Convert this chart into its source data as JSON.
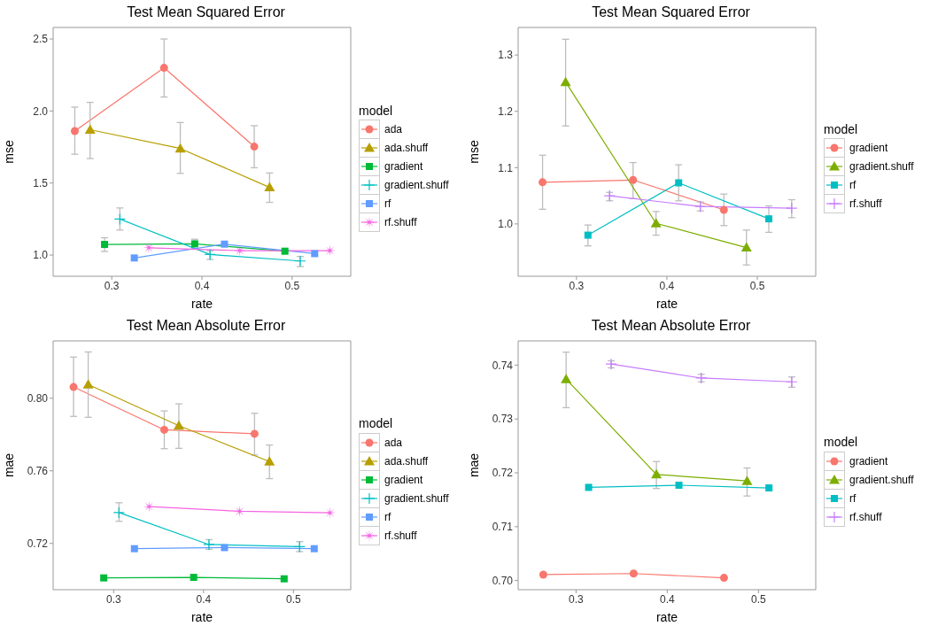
{
  "chart_data": [
    {
      "type": "line",
      "title": "Test Mean Squared Error",
      "xlabel": "rate",
      "ylabel": "mse",
      "legend_title": "model",
      "legend": "right",
      "xlim": [
        0.235,
        0.565
      ],
      "xticks": [
        0.3,
        0.4,
        0.5
      ],
      "ylim": [
        0.853,
        2.58
      ],
      "yticks": [
        {
          "value": 1,
          "label": "1.0"
        },
        1.5,
        {
          "value": 2,
          "label": "2.0"
        },
        2.5
      ],
      "series": [
        {
          "name": "ada",
          "color": "#f8766d",
          "marker": "circle",
          "x": [
            0.259,
            0.358,
            0.458
          ],
          "values": [
            1.861,
            2.3,
            1.753
          ],
          "errors": [
            [
              1.7,
              2.027
            ],
            [
              2.097,
              2.5
            ],
            [
              1.606,
              1.898
            ]
          ]
        },
        {
          "name": "ada.shuff",
          "color": "#b79f00",
          "marker": "triangle",
          "x": [
            0.276,
            0.376,
            0.475
          ],
          "values": [
            1.87,
            1.74,
            1.47
          ],
          "errors": [
            [
              1.67,
              2.06
            ],
            [
              1.567,
              1.92
            ],
            [
              1.366,
              1.57
            ]
          ]
        },
        {
          "name": "gradient",
          "color": "#00ba38",
          "marker": "square",
          "x": [
            0.292,
            0.392,
            0.492
          ],
          "values": [
            1.074,
            1.078,
            1.027
          ],
          "errors": [
            [
              1.025,
              1.12
            ],
            [
              1.045,
              1.11
            ],
            null
          ]
        },
        {
          "name": "gradient.shuff",
          "color": "#00bfc4",
          "marker": "cross",
          "x": [
            0.309,
            0.409,
            0.509
          ],
          "values": [
            1.25,
            1.004,
            0.959
          ],
          "errors": [
            [
              1.174,
              1.327
            ],
            [
              0.97,
              1.03
            ],
            [
              0.92,
              0.99
            ]
          ]
        },
        {
          "name": "rf",
          "color": "#619cff",
          "marker": "square",
          "x": [
            0.325,
            0.425,
            0.525
          ],
          "values": [
            0.98,
            1.076,
            1.01
          ]
        },
        {
          "name": "rf.shuff",
          "color": "#f564e3",
          "marker": "star",
          "x": [
            0.341,
            0.442,
            0.542
          ],
          "values": [
            1.051,
            1.031,
            1.031
          ]
        }
      ]
    },
    {
      "type": "line",
      "title": "Test Mean Squared Error",
      "xlabel": "rate",
      "ylabel": "mse",
      "legend_title": "model",
      "legend": "right",
      "xlim": [
        0.2355,
        0.5646
      ],
      "xticks": [
        0.3,
        0.4,
        0.5
      ],
      "ylim": [
        0.907,
        1.349
      ],
      "yticks": [
        {
          "value": 1,
          "label": "1.0"
        },
        1.1,
        1.2,
        1.3
      ],
      "series": [
        {
          "name": "gradient",
          "color": "#f8766d",
          "marker": "circle",
          "x": [
            0.2625,
            0.3626,
            0.463
          ],
          "values": [
            1.074,
            1.078,
            1.025
          ],
          "errors": [
            [
              1.026,
              1.122
            ],
            [
              1.045,
              1.109
            ],
            [
              0.997,
              1.053
            ]
          ]
        },
        {
          "name": "gradient.shuff",
          "color": "#7cae00",
          "marker": "triangle",
          "x": [
            0.288,
            0.388,
            0.488
          ],
          "values": [
            1.252,
            1.001,
            0.958
          ],
          "errors": [
            [
              1.174,
              1.328
            ],
            [
              0.98,
              1.022
            ],
            [
              0.927,
              0.989
            ]
          ]
        },
        {
          "name": "rf",
          "color": "#00bfc4",
          "marker": "square",
          "x": [
            0.3127,
            0.413,
            0.5127
          ],
          "values": [
            0.98,
            1.073,
            1.009
          ],
          "errors": [
            [
              0.961,
              0.998
            ],
            [
              1.041,
              1.105
            ],
            [
              0.985,
              1.032
            ]
          ]
        },
        {
          "name": "rf.shuff",
          "color": "#c77cff",
          "marker": "cross",
          "x": [
            0.3366,
            0.437,
            0.538
          ],
          "values": [
            1.05,
            1.031,
            1.028
          ],
          "errors": [
            [
              1.041,
              1.056
            ],
            [
              1.023,
              1.039
            ],
            [
              1.011,
              1.043
            ]
          ]
        }
      ]
    },
    {
      "type": "line",
      "title": "Test Mean Absolute Error",
      "xlabel": "rate",
      "ylabel": "mae",
      "legend_title": "model",
      "legend": "right",
      "xlim": [
        0.2327,
        0.5637
      ],
      "xticks": [
        0.3,
        0.4,
        0.5
      ],
      "ylim": [
        0.6945,
        0.8316
      ],
      "yticks": [
        0.72,
        0.76,
        {
          "value": 0.8,
          "label": "0.80"
        }
      ],
      "series": [
        {
          "name": "ada",
          "color": "#f8766d",
          "marker": "circle",
          "x": [
            0.2554,
            0.3563,
            0.4567
          ],
          "values": [
            0.8062,
            0.7826,
            0.7804
          ],
          "errors": [
            [
              0.79,
              0.8227
            ],
            [
              0.7722,
              0.793
            ],
            [
              0.7687,
              0.7917
            ]
          ]
        },
        {
          "name": "ada.shuff",
          "color": "#b79f00",
          "marker": "triangle",
          "x": [
            0.2717,
            0.3725,
            0.4733
          ],
          "values": [
            0.8076,
            0.7849,
            0.7651
          ],
          "errors": [
            [
              0.7895,
              0.8255
            ],
            [
              0.7724,
              0.7969
            ],
            [
              0.7557,
              0.7742
            ]
          ]
        },
        {
          "name": "gradient",
          "color": "#00ba38",
          "marker": "square",
          "x": [
            0.289,
            0.389,
            0.4896
          ],
          "values": [
            0.701,
            0.7013,
            0.7005
          ]
        },
        {
          "name": "gradient.shuff",
          "color": "#00bfc4",
          "marker": "cross",
          "x": [
            0.3059,
            0.406,
            0.5068
          ],
          "values": [
            0.737,
            0.7194,
            0.7182
          ],
          "errors": [
            [
              0.7322,
              0.7424
            ],
            [
              0.7168,
              0.7221
            ],
            [
              0.7155,
              0.721
            ]
          ]
        },
        {
          "name": "rf",
          "color": "#619cff",
          "marker": "square",
          "x": [
            0.3231,
            0.4233,
            0.5231
          ],
          "values": [
            0.7171,
            0.7177,
            0.7171
          ]
        },
        {
          "name": "rf.shuff",
          "color": "#f564e3",
          "marker": "star",
          "x": [
            0.3393,
            0.4402,
            0.5407
          ],
          "values": [
            0.7403,
            0.7377,
            0.7369
          ]
        }
      ]
    },
    {
      "type": "line",
      "title": "Test Mean Absolute Error",
      "xlabel": "rate",
      "ylabel": "mae",
      "legend_title": "model",
      "legend": "right",
      "xlim": [
        0.2365,
        0.5628
      ],
      "xticks": [
        0.3,
        0.4,
        0.5
      ],
      "ylim": [
        0.6983,
        0.7445
      ],
      "yticks": [
        {
          "value": 0.7,
          "label": "0.70"
        },
        0.71,
        0.72,
        0.73,
        0.74
      ],
      "series": [
        {
          "name": "gradient",
          "color": "#f8766d",
          "marker": "circle",
          "x": [
            0.2641,
            0.3631,
            0.4622
          ],
          "values": [
            0.7011,
            0.7013,
            0.7005
          ]
        },
        {
          "name": "gradient.shuff",
          "color": "#7cae00",
          "marker": "triangle",
          "x": [
            0.2891,
            0.3881,
            0.4875
          ],
          "values": [
            0.7374,
            0.7197,
            0.7185
          ],
          "errors": [
            [
              0.7321,
              0.7424
            ],
            [
              0.7171,
              0.7221
            ],
            [
              0.7157,
              0.7209
            ]
          ]
        },
        {
          "name": "rf",
          "color": "#00bfc4",
          "marker": "square",
          "x": [
            0.3138,
            0.4128,
            0.5115
          ],
          "values": [
            0.7173,
            0.7177,
            0.7172
          ]
        },
        {
          "name": "rf.shuff",
          "color": "#c77cff",
          "marker": "cross",
          "x": [
            0.3385,
            0.4372,
            0.5365
          ],
          "values": [
            0.7402,
            0.7376,
            0.7369
          ],
          "errors": [
            [
              0.7395,
              0.7408
            ],
            [
              0.7369,
              0.7383
            ],
            [
              0.7359,
              0.7378
            ]
          ]
        }
      ]
    }
  ]
}
